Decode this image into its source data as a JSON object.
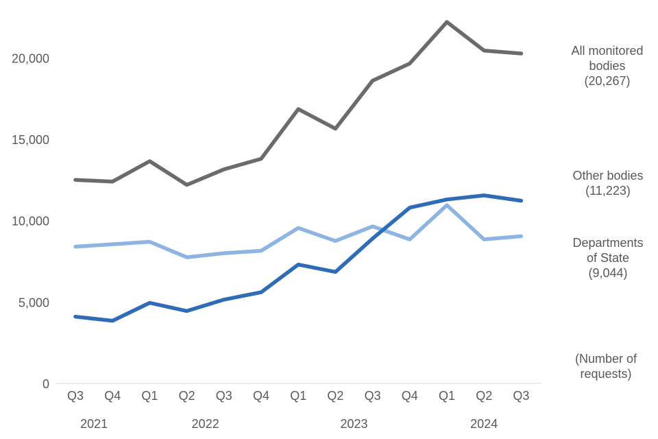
{
  "chart_data": {
    "type": "line",
    "categories": [
      "Q3",
      "Q4",
      "Q1",
      "Q2",
      "Q3",
      "Q4",
      "Q1",
      "Q2",
      "Q3",
      "Q4",
      "Q1",
      "Q2",
      "Q3"
    ],
    "years": [
      {
        "label": "2021",
        "start": 0,
        "end": 1
      },
      {
        "label": "2022",
        "start": 2,
        "end": 5
      },
      {
        "label": "2023",
        "start": 6,
        "end": 9
      },
      {
        "label": "2024",
        "start": 10,
        "end": 12
      }
    ],
    "ylim": [
      0,
      22500
    ],
    "yticks": [
      0,
      5000,
      10000,
      15000,
      20000
    ],
    "ytick_labels": [
      "0",
      "5,000",
      "10,000",
      "15,000",
      "20,000"
    ],
    "grid": false,
    "series": [
      {
        "key": "all",
        "label_lines": [
          "All monitored",
          "bodies",
          "(20,267)"
        ],
        "color": "#6b6b6b",
        "values": [
          12500,
          12400,
          13650,
          12200,
          13150,
          13800,
          16850,
          15650,
          18600,
          19650,
          22200,
          20450,
          20267
        ]
      },
      {
        "key": "other",
        "label_lines": [
          "Other bodies",
          "(11,223)"
        ],
        "color": "#2f6cb8",
        "values": [
          4100,
          3850,
          4950,
          4450,
          5150,
          5600,
          7300,
          6850,
          8900,
          10800,
          11300,
          11550,
          11223
        ]
      },
      {
        "key": "departments",
        "label_lines": [
          "Departments",
          "of State",
          "(9,044)"
        ],
        "color": "#8db4e2",
        "values": [
          8400,
          8550,
          8700,
          7750,
          8000,
          8150,
          9550,
          8750,
          9650,
          8850,
          10950,
          8850,
          9044
        ]
      }
    ],
    "unit_note_lines": [
      "(Number of",
      "requests)"
    ]
  }
}
